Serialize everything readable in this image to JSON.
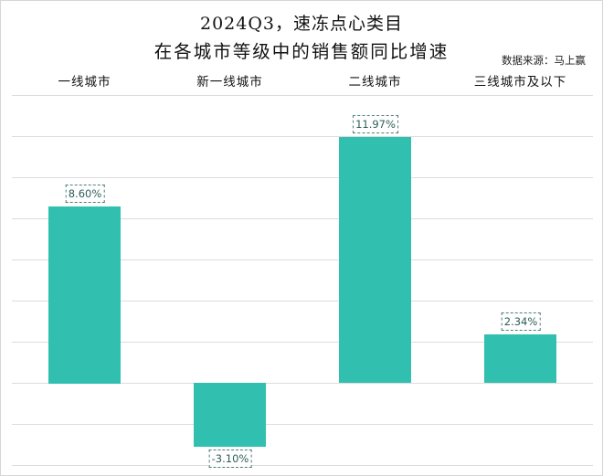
{
  "chart_data": {
    "type": "bar",
    "title": "2024Q3，速冻点心类目",
    "subtitle": "在各城市等级中的销售额同比增速",
    "source": "数据来源：马上赢",
    "categories": [
      "一线城市",
      "新一线城市",
      "二线城市",
      "三线城市及以下"
    ],
    "values": [
      8.6,
      -3.1,
      11.97,
      2.34
    ],
    "value_labels": [
      "8.60%",
      "-3.10%",
      "11.97%",
      "2.34%"
    ],
    "unit": "%",
    "xlabel": "",
    "ylabel": "",
    "ylim": [
      -4,
      14
    ],
    "grid_step": 2,
    "grid": true,
    "y_tick_labels_visible": false,
    "legend": null,
    "category_label_position": "top",
    "bar_color": "#31c0b0",
    "label_color": "#2f5e59"
  }
}
